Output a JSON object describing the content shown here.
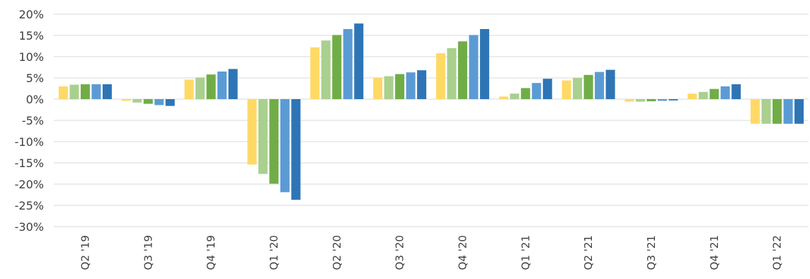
{
  "chart_data": {
    "type": "bar",
    "title": "",
    "xlabel": "",
    "ylabel": "",
    "ylim": [
      -30,
      20
    ],
    "y_ticks": [
      "20%",
      "15%",
      "10%",
      "5%",
      "0%",
      "-5%",
      "-10%",
      "-15%",
      "-20%",
      "-25%",
      "-30%"
    ],
    "y_tick_values": [
      20,
      15,
      10,
      5,
      0,
      -5,
      -10,
      -15,
      -20,
      -25,
      -30
    ],
    "grid": true,
    "legend": "none",
    "categories": [
      "Q2 '19",
      "Q3 '19",
      "Q4 '19",
      "Q1 '20",
      "Q2 '20",
      "Q3 '20",
      "Q4 '20",
      "Q1 '21",
      "Q2 '21",
      "Q3 '21",
      "Q4 '21",
      "Q1 '22"
    ],
    "series_colors": [
      "#ffd966",
      "#a9d08e",
      "#70ad47",
      "#5b9bd5",
      "#2e75b6"
    ],
    "series": [
      {
        "values": [
          3.0,
          -0.4,
          4.6,
          -15.4,
          12.2,
          5.1,
          10.8,
          0.6,
          4.4,
          -0.6,
          1.3,
          -5.8
        ]
      },
      {
        "values": [
          3.4,
          -0.8,
          5.1,
          -17.6,
          13.8,
          5.4,
          12.0,
          1.3,
          5.0,
          -0.6,
          1.7,
          -5.8
        ]
      },
      {
        "values": [
          3.5,
          -1.1,
          5.8,
          -19.9,
          15.1,
          5.9,
          13.6,
          2.6,
          5.7,
          -0.5,
          2.4,
          -5.8
        ]
      },
      {
        "values": [
          3.5,
          -1.4,
          6.5,
          -21.9,
          16.5,
          6.3,
          15.1,
          3.8,
          6.4,
          -0.4,
          3.0,
          -5.8
        ]
      },
      {
        "values": [
          3.5,
          -1.6,
          7.1,
          -23.7,
          17.8,
          6.8,
          16.5,
          4.8,
          6.9,
          -0.3,
          3.5,
          -5.8
        ]
      }
    ]
  }
}
